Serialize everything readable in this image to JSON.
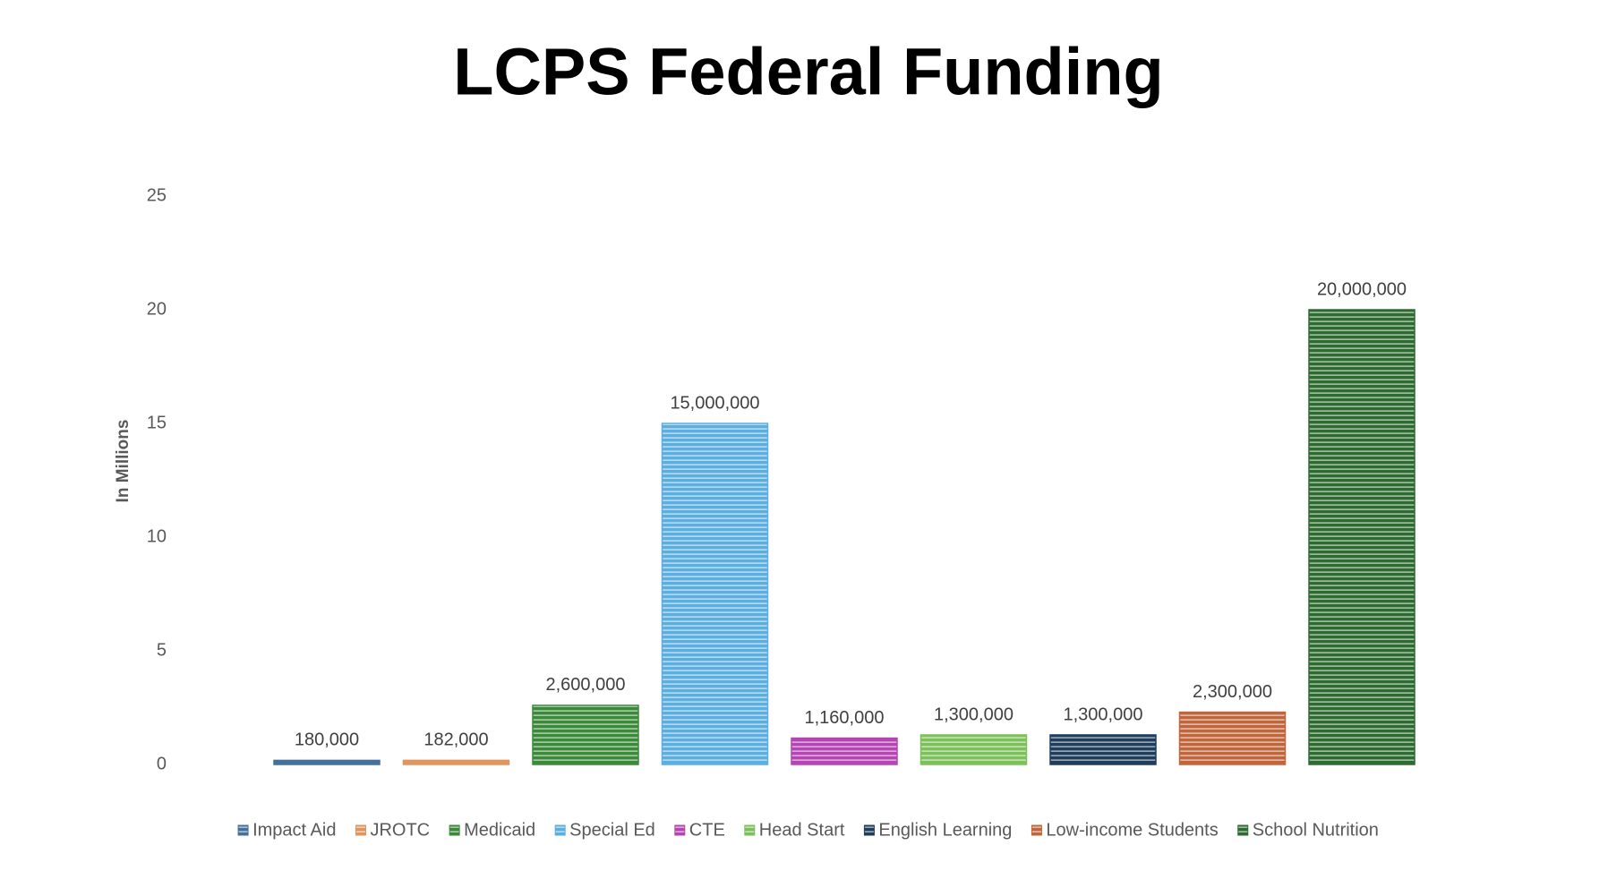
{
  "chart_data": {
    "type": "bar",
    "title": "LCPS Federal Funding",
    "y_label": "In Millions",
    "categories": [
      null
    ],
    "series": [
      {
        "name": "Impact Aid",
        "color": "#44719c",
        "values": [
          0.18
        ],
        "value_labels": [
          "180,000"
        ]
      },
      {
        "name": "JROTC",
        "color": "#e0955f",
        "values": [
          0.182
        ],
        "value_labels": [
          "182,000"
        ]
      },
      {
        "name": "Medicaid",
        "color": "#3a8a3a",
        "values": [
          2.6
        ],
        "value_labels": [
          "2,600,000"
        ]
      },
      {
        "name": "Special Ed",
        "color": "#5aaee0",
        "values": [
          15
        ],
        "value_labels": [
          "15,000,000"
        ]
      },
      {
        "name": "CTE",
        "color": "#b545b5",
        "values": [
          1.16
        ],
        "value_labels": [
          "1,160,000"
        ]
      },
      {
        "name": "Head Start",
        "color": "#7cc05a",
        "values": [
          1.3
        ],
        "value_labels": [
          "1,300,000"
        ]
      },
      {
        "name": "English Learning",
        "color": "#1f3d5c",
        "values": [
          1.3
        ],
        "value_labels": [
          "1,300,000"
        ]
      },
      {
        "name": "Low-income Students",
        "color": "#c0663a",
        "values": [
          2.3
        ],
        "value_labels": [
          "2,300,000"
        ]
      },
      {
        "name": "School Nutrition",
        "color": "#2d6b30",
        "values": [
          20
        ],
        "value_labels": [
          "20,000,000"
        ]
      }
    ],
    "ylim": [
      0,
      25
    ],
    "yticks": [
      0,
      5,
      10,
      15,
      20,
      25
    ],
    "grid": false,
    "legend": "bottom"
  }
}
